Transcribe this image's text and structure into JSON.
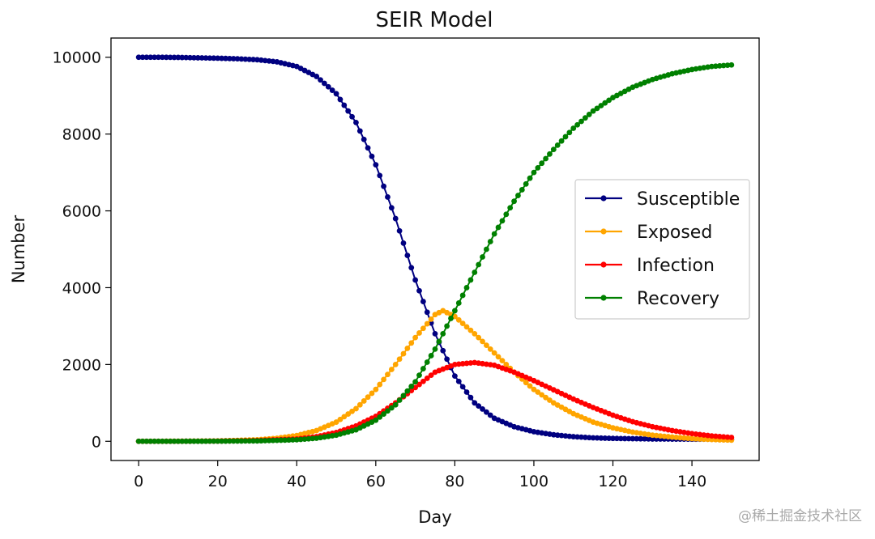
{
  "chart_data": {
    "type": "line",
    "title": "SEIR Model",
    "xlabel": "Day",
    "ylabel": "Number",
    "xlim": [
      -7,
      157
    ],
    "ylim": [
      -500,
      10500
    ],
    "xticks": [
      0,
      20,
      40,
      60,
      80,
      100,
      120,
      140
    ],
    "yticks": [
      0,
      2000,
      4000,
      6000,
      8000,
      10000
    ],
    "legend_location": "center right",
    "series": [
      {
        "name": "Susceptible",
        "color": "#000080",
        "points": [
          [
            0,
            10000
          ],
          [
            5,
            10000
          ],
          [
            10,
            9995
          ],
          [
            15,
            9985
          ],
          [
            20,
            9975
          ],
          [
            25,
            9960
          ],
          [
            30,
            9935
          ],
          [
            35,
            9880
          ],
          [
            40,
            9760
          ],
          [
            45,
            9500
          ],
          [
            50,
            9050
          ],
          [
            55,
            8300
          ],
          [
            60,
            7200
          ],
          [
            65,
            5800
          ],
          [
            70,
            4200
          ],
          [
            75,
            2800
          ],
          [
            80,
            1700
          ],
          [
            85,
            1000
          ],
          [
            90,
            600
          ],
          [
            95,
            380
          ],
          [
            100,
            250
          ],
          [
            105,
            170
          ],
          [
            110,
            120
          ],
          [
            115,
            90
          ],
          [
            120,
            75
          ],
          [
            130,
            60
          ],
          [
            140,
            55
          ],
          [
            150,
            50
          ]
        ]
      },
      {
        "name": "Exposed",
        "color": "#FFA500",
        "points": [
          [
            0,
            0
          ],
          [
            10,
            2
          ],
          [
            20,
            10
          ],
          [
            30,
            40
          ],
          [
            35,
            80
          ],
          [
            40,
            150
          ],
          [
            45,
            280
          ],
          [
            50,
            500
          ],
          [
            55,
            850
          ],
          [
            60,
            1350
          ],
          [
            65,
            2000
          ],
          [
            70,
            2700
          ],
          [
            75,
            3300
          ],
          [
            77,
            3400
          ],
          [
            80,
            3250
          ],
          [
            85,
            2800
          ],
          [
            90,
            2300
          ],
          [
            95,
            1800
          ],
          [
            100,
            1350
          ],
          [
            105,
            1000
          ],
          [
            110,
            720
          ],
          [
            115,
            500
          ],
          [
            120,
            350
          ],
          [
            125,
            240
          ],
          [
            130,
            160
          ],
          [
            135,
            110
          ],
          [
            140,
            70
          ],
          [
            145,
            45
          ],
          [
            150,
            30
          ]
        ]
      },
      {
        "name": "Infection",
        "color": "#FF0000",
        "points": [
          [
            0,
            0
          ],
          [
            10,
            1
          ],
          [
            20,
            5
          ],
          [
            30,
            20
          ],
          [
            40,
            60
          ],
          [
            45,
            120
          ],
          [
            50,
            230
          ],
          [
            55,
            400
          ],
          [
            60,
            650
          ],
          [
            65,
            1000
          ],
          [
            70,
            1400
          ],
          [
            75,
            1800
          ],
          [
            80,
            2000
          ],
          [
            85,
            2050
          ],
          [
            90,
            1980
          ],
          [
            95,
            1800
          ],
          [
            100,
            1580
          ],
          [
            105,
            1340
          ],
          [
            110,
            1100
          ],
          [
            115,
            880
          ],
          [
            120,
            680
          ],
          [
            125,
            510
          ],
          [
            130,
            380
          ],
          [
            135,
            280
          ],
          [
            140,
            200
          ],
          [
            145,
            140
          ],
          [
            150,
            100
          ]
        ]
      },
      {
        "name": "Recovery",
        "color": "#008000",
        "points": [
          [
            0,
            0
          ],
          [
            10,
            1
          ],
          [
            20,
            3
          ],
          [
            30,
            10
          ],
          [
            40,
            40
          ],
          [
            45,
            80
          ],
          [
            50,
            160
          ],
          [
            55,
            300
          ],
          [
            60,
            550
          ],
          [
            65,
            950
          ],
          [
            70,
            1550
          ],
          [
            75,
            2400
          ],
          [
            80,
            3400
          ],
          [
            85,
            4400
          ],
          [
            90,
            5400
          ],
          [
            95,
            6250
          ],
          [
            100,
            7000
          ],
          [
            105,
            7600
          ],
          [
            110,
            8150
          ],
          [
            115,
            8600
          ],
          [
            120,
            8950
          ],
          [
            125,
            9220
          ],
          [
            130,
            9420
          ],
          [
            135,
            9570
          ],
          [
            140,
            9680
          ],
          [
            145,
            9760
          ],
          [
            150,
            9800
          ]
        ]
      }
    ]
  },
  "watermark": "@稀土掘金技术社区"
}
